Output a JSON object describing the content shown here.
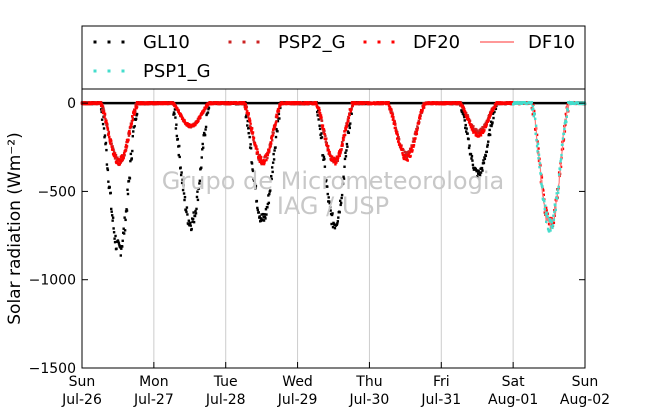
{
  "chart_data": {
    "type": "scatter",
    "ylabel": "Solar radiation (Wm⁻²)",
    "ylim": [
      -1500,
      80
    ],
    "yticks": [
      0,
      -500,
      -1000,
      -1500
    ],
    "ytick_labels": [
      "0",
      "−500",
      "−1000",
      "−1500"
    ],
    "xlim": [
      0,
      7
    ],
    "xticks": [
      {
        "x": 0,
        "day": "Sun",
        "date": "Jul-26"
      },
      {
        "x": 1,
        "day": "Mon",
        "date": "Jul-27"
      },
      {
        "x": 2,
        "day": "Tue",
        "date": "Jul-28"
      },
      {
        "x": 3,
        "day": "Wed",
        "date": "Jul-29"
      },
      {
        "x": 4,
        "day": "Thu",
        "date": "Jul-30"
      },
      {
        "x": 5,
        "day": "Fri",
        "date": "Jul-31"
      },
      {
        "x": 6,
        "day": "Sat",
        "date": "Aug-01"
      },
      {
        "x": 7,
        "day": "Sun",
        "date": "Aug-02"
      }
    ],
    "grid": "vertical",
    "legend_position": "top",
    "watermark": [
      "Grupo de Micrometeorologia",
      "IAG / USP"
    ],
    "series": [
      {
        "name": "GL10",
        "color": "#000000",
        "style": "dotted",
        "days": [
          {
            "start": 0,
            "peak": -830
          },
          {
            "start": 1,
            "peak": -680
          },
          {
            "start": 2,
            "peak": -660
          },
          {
            "start": 3,
            "peak": -680
          },
          {
            "start": 5,
            "peak": -400
          }
        ]
      },
      {
        "name": "PSP2_G",
        "color": "#cc2222",
        "style": "dotted",
        "days": [
          {
            "start": 0,
            "peak": -330
          },
          {
            "start": 1,
            "peak": -130
          },
          {
            "start": 2,
            "peak": -330
          },
          {
            "start": 3,
            "peak": -330
          },
          {
            "start": 4,
            "peak": -290
          },
          {
            "start": 5,
            "peak": -160
          }
        ]
      },
      {
        "name": "DF20",
        "color": "#ff0000",
        "style": "dotted",
        "days": [
          {
            "start": 0,
            "peak": -330
          },
          {
            "start": 1,
            "peak": -130
          },
          {
            "start": 2,
            "peak": -330
          },
          {
            "start": 3,
            "peak": -330
          },
          {
            "start": 4,
            "peak": -310
          },
          {
            "start": 5,
            "peak": -180
          },
          {
            "start": 6,
            "peak": -690
          }
        ]
      },
      {
        "name": "DF10",
        "color": "#ff7777",
        "style": "solid",
        "days": [
          {
            "start": 6,
            "peak": -690
          }
        ]
      },
      {
        "name": "PSP1_G",
        "color": "#44ddcc",
        "style": "dotted",
        "days": [
          {
            "start": 6,
            "peak": -690
          }
        ]
      }
    ]
  }
}
